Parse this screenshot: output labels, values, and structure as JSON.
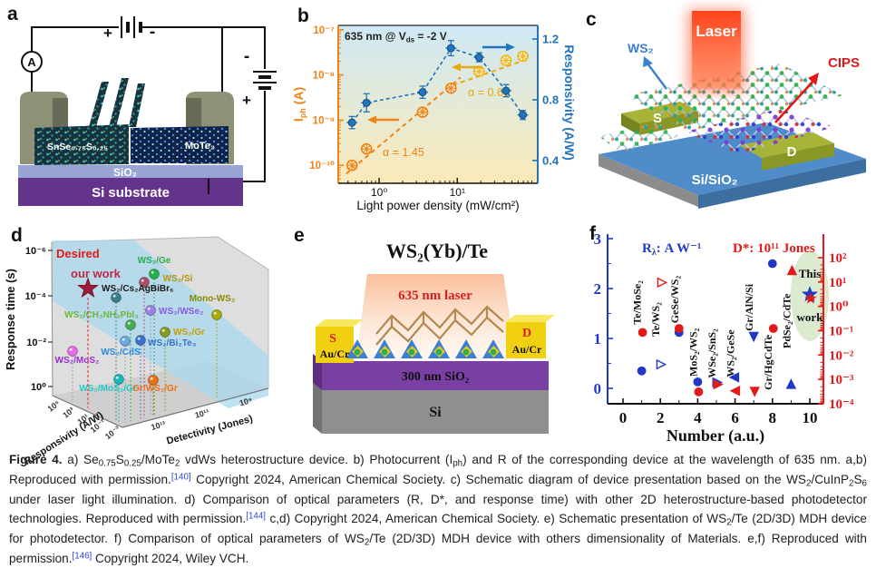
{
  "panel_labels": {
    "a": "a",
    "b": "b",
    "c": "c",
    "d": "d",
    "e": "e",
    "f": "f"
  },
  "panel_a": {
    "labels": {
      "ammeter": "A",
      "bat_plus": "+",
      "bat_minus": "-",
      "bat2_minus": "-",
      "bat2_plus": "+",
      "flake_left": "SnSe₀.₇₅S₀.₂₅",
      "flake_right": "MoTe₂",
      "oxide": "SiO₂",
      "substrate": "Si substrate"
    }
  },
  "panel_c": {
    "labels": {
      "laser": "Laser",
      "ws2": "WS₂",
      "cips": "CIPS",
      "source": "S",
      "drain": "D",
      "substrate": "Si/SiO₂"
    }
  },
  "panel_e": {
    "labels": {
      "title": "WS₂(Yb)/Te",
      "laser": "635 nm laser",
      "source": "S",
      "drain": "D",
      "aucr_left": "Au/Cr",
      "aucr_right": "Au/Cr",
      "oxide": "300 nm SiO₂",
      "si": "Si"
    }
  },
  "chart_data": [
    {
      "id": "b",
      "type": "line",
      "annotation_parts": {
        "pre": "635 nm @ V",
        "sub": "ds",
        "post": " = -2 V"
      },
      "xlabel": "Light power density (mW/cm²)",
      "ylabel_left_parts": {
        "pre": "I",
        "sub": "ph",
        "post": " (A)"
      },
      "ylabel_right": "Responsivity (A/W)",
      "x_scale": "log",
      "x_range": [
        0.3,
        107
      ],
      "yleft_scale": "log",
      "yleft_range": [
        4e-11,
        1.25e-07
      ],
      "yright_scale": "linear",
      "yright_range": [
        0.25,
        1.29
      ],
      "x_ticks": [
        1,
        10
      ],
      "x_tick_labels": [
        "10⁰",
        "10¹"
      ],
      "yleft_ticks": [
        1e-07,
        1e-08,
        1e-09,
        1e-10
      ],
      "yleft_tick_labels": [
        "10⁻⁷",
        "10⁻⁸",
        "10⁻⁹",
        "10⁻¹⁰"
      ],
      "yright_ticks": [
        1.2,
        0.8,
        0.4
      ],
      "yright_tick_labels": [
        "1.2",
        "0.8",
        "0.4"
      ],
      "series": [
        {
          "name": "Iph",
          "axis": "left",
          "marker": "crossed-circle",
          "color_low": "#f08418",
          "color_high": "#f0b81c",
          "x": [
            0.45,
            0.69,
            3.6,
            8.3,
            19,
            42,
            69
          ],
          "y": [
            1e-10,
            2.3e-10,
            1.5e-09,
            5.1e-09,
            1.2e-08,
            2.1e-08,
            2.6e-08
          ]
        },
        {
          "name": "Responsivity",
          "axis": "right",
          "marker": "circle-errorbar",
          "color": "#2272bc",
          "x": [
            0.45,
            0.69,
            3.6,
            8.3,
            19,
            42,
            69
          ],
          "y": [
            0.65,
            0.78,
            0.85,
            1.14,
            1.08,
            0.86,
            0.7
          ],
          "yerr": [
            0.04,
            0.06,
            0.04,
            0.05,
            0.03,
            0.04,
            0.03
          ]
        }
      ],
      "fits": [
        {
          "label": "α = 1.45",
          "color": "#f08418",
          "x": [
            0.38,
            11
          ],
          "y": [
            6.5e-11,
            8.8e-09
          ]
        },
        {
          "label": "α = 0.60",
          "color": "#e8a810",
          "x": [
            7,
            80
          ],
          "y": [
            5.2e-09,
            2.25e-08
          ]
        }
      ],
      "bg_top": "#cfe9f5",
      "bg_bottom": "#fbeab8"
    },
    {
      "id": "d",
      "type": "scatter3d",
      "zlabel": "Response time (s)",
      "z_ticks": [
        "10⁻⁶",
        "10⁻⁴",
        "10⁻²",
        "10⁰"
      ],
      "xlabel": "Responsivity (A/W)",
      "x_ticks": [
        "10⁵",
        "10³",
        "10¹",
        "10⁻¹",
        "10⁻³"
      ],
      "ylabel": "Detectivity (Jones)",
      "y_ticks": [
        "10¹³",
        "10¹¹",
        "10⁹"
      ],
      "band_label": "Desired",
      "our_work": {
        "label": "our work",
        "x": 97,
        "y": 78,
        "color": "#9b1b3a",
        "label_x": 78,
        "label_y": 66
      },
      "band_label_pos": {
        "x": 62,
        "y": 44
      },
      "points": [
        {
          "label": "WS₂/Ge",
          "color": "#21b04b",
          "ball": "#21b04b",
          "bx": 170,
          "by": 62,
          "lx": 170,
          "ly": 50,
          "anchor": "middle"
        },
        {
          "label": "WS₂/Si",
          "color": "#b8960c",
          "ball": "#a85060",
          "bx": 159,
          "by": 71,
          "lx": 196,
          "ly": 70,
          "anchor": "middle"
        },
        {
          "label": "WS₂/Cs₂AgBiBr₆",
          "color": "#1a1a1a",
          "ball": "#3a8090",
          "bx": 128,
          "by": 88,
          "lx": 112,
          "ly": 81,
          "anchor": "start"
        },
        {
          "label": "Mono-WS₂",
          "color": "#8a8a00",
          "ball": "#aaaa00",
          "bx": 239,
          "by": 107,
          "lx": 234,
          "ly": 92,
          "anchor": "middle"
        },
        {
          "label": "WS₂/WSe₂",
          "color": "#8a5ae8",
          "ball": "#9a80e8",
          "bx": 166,
          "by": 102,
          "lx": 175,
          "ly": 106,
          "anchor": "start"
        },
        {
          "label": "WS₂/CH₃NH₃PbI₃",
          "color": "#6ab83a",
          "ball": "#3fae4f",
          "bx": 144,
          "by": 118,
          "lx": 112,
          "ly": 110,
          "anchor": "middle"
        },
        {
          "label": "WS₂/Gr",
          "color": "#c8a000",
          "ball": "#8a9a20",
          "bx": 182,
          "by": 126,
          "lx": 191,
          "ly": 129,
          "anchor": "start"
        },
        {
          "label": "WS₂/Bi₂Te₃",
          "color": "#3a6fd0",
          "ball": "#3a6fd0",
          "bx": 155,
          "by": 135,
          "lx": 163,
          "ly": 141,
          "anchor": "start"
        },
        {
          "label": "WS₂/CdS",
          "color": "#2a8ae0",
          "ball": "#6aa8e8",
          "bx": 138,
          "by": 136,
          "lx": 133,
          "ly": 151,
          "anchor": "middle"
        },
        {
          "label": "WS₂/MoS₂",
          "color": "#9a30d0",
          "ball": "#e86ae8",
          "bx": 80,
          "by": 147,
          "lx": 85,
          "ly": 160,
          "anchor": "middle"
        },
        {
          "label": "WS₂/MoS₂/Gr",
          "color": "#28c8c8",
          "ball": "#18b8b8",
          "bx": 131,
          "by": 178,
          "lx": 119,
          "ly": 191,
          "anchor": "middle"
        },
        {
          "label": "Gr/WS₂/Gr",
          "color": "#e87018",
          "ball": "#e87018",
          "bx": 169,
          "by": 179,
          "lx": 171,
          "ly": 191,
          "anchor": "middle"
        }
      ]
    },
    {
      "id": "f",
      "type": "scatter",
      "xlabel": "Number (a.u.)",
      "legend_left_parts": {
        "pre": "R",
        "sub": "λ",
        "post": ": A W⁻¹"
      },
      "legend_right": "D*: 10¹¹ Jones",
      "x_ticks": [
        0,
        2,
        4,
        6,
        8,
        10
      ],
      "yleft_ticks": [
        0,
        1,
        2,
        3
      ],
      "yright_tick_labels": [
        "10²",
        "10¹",
        "10⁰",
        "10⁻¹",
        "10⁻²",
        "10⁻³",
        "10⁻⁴"
      ],
      "colors": {
        "blue": "#2038c8",
        "red": "#e31a1a",
        "ellipse": "#dcead0"
      },
      "this_work": {
        "line1": "This",
        "line2": "work"
      },
      "columns": [
        {
          "x": 1,
          "label": "Te/MoSe₂",
          "label_y": 1.72,
          "blue": {
            "marker": "circle",
            "y": 0.35
          },
          "red": {
            "marker": "circle",
            "y": 1.12
          }
        },
        {
          "x": 2,
          "label": "Te/WS₂",
          "label_y": 1.38,
          "blue": {
            "marker": "tri-right",
            "open": true,
            "y": 0.48
          },
          "red": {
            "marker": "tri-right",
            "open": true,
            "y": 2.12
          }
        },
        {
          "x": 3,
          "label": "GeSe/WS₂",
          "label_y": 1.78,
          "blue": {
            "marker": "circle",
            "y": 1.12
          },
          "red": {
            "marker": "circle",
            "y": 1.2
          }
        },
        {
          "x": 4,
          "label": "MoS₂/WS₂",
          "label_y": 0.72,
          "blue": {
            "marker": "circle",
            "y": 0.13
          },
          "red": {
            "marker": "circle",
            "y": -0.07
          }
        },
        {
          "x": 5,
          "label": "WSe₂/SnS₂",
          "label_y": 0.7,
          "blue": {
            "marker": "tri-right",
            "y": 0.12
          },
          "red": {
            "marker": "tri-right",
            "y": 0.08
          }
        },
        {
          "x": 6,
          "label": "WS₂/GeSe",
          "label_y": 0.7,
          "blue": {
            "marker": "tri-left",
            "y": 0.22
          },
          "red": {
            "marker": "tri-left",
            "y": -0.05
          }
        },
        {
          "x": 7,
          "label": "Gr/AlN/Si",
          "label_y": 1.62,
          "blue": {
            "marker": "tri-down",
            "y": 1.05
          },
          "red": {
            "marker": "tri-down",
            "y": -0.05
          }
        },
        {
          "x": 8,
          "label": "Gr/HgCdTe",
          "label_y": 0.52,
          "blue": {
            "marker": "circle",
            "y": 2.5
          },
          "red": {
            "marker": "circle",
            "y": 1.2
          }
        },
        {
          "x": 9,
          "label": "PdSe₂/CdTe",
          "label_y": 1.35,
          "blue": {
            "marker": "tri-up",
            "y": 0.07
          },
          "red": {
            "marker": "tri-up",
            "y": 2.35
          }
        },
        {
          "x": 10,
          "blue": {
            "marker": "star",
            "y": 1.88
          },
          "red": {
            "marker": "star",
            "y": 1.8
          }
        }
      ]
    }
  ],
  "caption": {
    "segments": [
      {
        "t": "Figure 4.",
        "b": 1
      },
      {
        "t": "  a) Se"
      },
      {
        "t": "0.75",
        "sub": 1
      },
      {
        "t": "S"
      },
      {
        "t": "0.25",
        "sub": 1
      },
      {
        "t": "/MoTe"
      },
      {
        "t": "2",
        "sub": 1
      },
      {
        "t": " vdWs heterostructure device. b) Photocurrent (I"
      },
      {
        "t": "ph",
        "sub": 1
      },
      {
        "t": ") and R of the corresponding device at the wavelength of 635 nm. a,b) Reproduced with permission."
      },
      {
        "t": "[140]",
        "sup": 1,
        "blue": 1
      },
      {
        "t": " Copyright 2024, American Chemical Society. c) Schematic diagram of device presentation based on the WS"
      },
      {
        "t": "2",
        "sub": 1
      },
      {
        "t": "/CuInP"
      },
      {
        "t": "2",
        "sub": 1
      },
      {
        "t": "S"
      },
      {
        "t": "6",
        "sub": 1
      },
      {
        "t": " under laser light illumination. d) Comparison of optical parameters (R, D*, and response time) with other 2D heterostructure-based photodetector technologies. Reproduced with permission."
      },
      {
        "t": "[144]",
        "sup": 1,
        "blue": 1
      },
      {
        "t": " c,d) Copyright 2024, American Chemical Society. e) Schematic presentation of WS"
      },
      {
        "t": "2",
        "sub": 1
      },
      {
        "t": "/Te (2D/3D) MDH device for photodetector. f) Comparison of optical parameters of WS"
      },
      {
        "t": "2",
        "sub": 1
      },
      {
        "t": "/Te (2D/3D) MDH device with others dimensionality of Materials. e,f) Reproduced with permission."
      },
      {
        "t": "[146]",
        "sup": 1,
        "blue": 1
      },
      {
        "t": " Copyright 2024, Wiley VCH."
      }
    ]
  }
}
